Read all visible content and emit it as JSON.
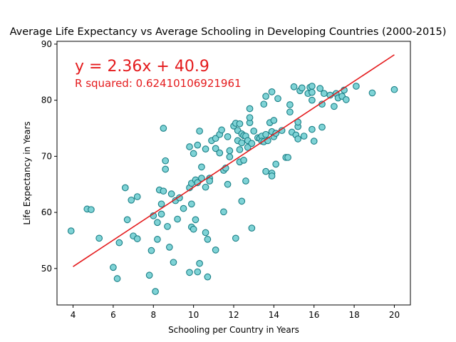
{
  "chart_data": {
    "type": "scatter",
    "title": "Average Life Expectancy vs Average Schooling in Developing Countries (2000-2015)",
    "xlabel": "Schooling per Country in Years",
    "ylabel": "Life Expectancy in Years",
    "xlim": [
      3.2,
      20.8
    ],
    "ylim": [
      43.5,
      90.5
    ],
    "xticks": [
      4,
      6,
      8,
      10,
      12,
      14,
      16,
      18,
      20
    ],
    "yticks": [
      50,
      60,
      70,
      80,
      90
    ],
    "grid": false,
    "colors": {
      "marker_face": "#7fd3d6",
      "marker_edge": "#1a7f86",
      "regression": "#e41a1c"
    },
    "regression": {
      "slope": 2.36,
      "intercept": 40.9,
      "x_range": [
        4.0,
        20.0
      ],
      "equation_text": "y = 2.36x + 40.9",
      "r_squared_text": "R squared: 0.62410106921961"
    },
    "points": [
      [
        3.9,
        56.7
      ],
      [
        4.7,
        60.6
      ],
      [
        4.9,
        60.5
      ],
      [
        5.3,
        55.4
      ],
      [
        6.0,
        50.2
      ],
      [
        6.2,
        48.2
      ],
      [
        6.3,
        54.6
      ],
      [
        6.6,
        64.4
      ],
      [
        6.7,
        58.7
      ],
      [
        6.9,
        62.2
      ],
      [
        7.0,
        55.8
      ],
      [
        7.2,
        62.8
      ],
      [
        7.2,
        55.3
      ],
      [
        7.8,
        48.8
      ],
      [
        7.9,
        53.2
      ],
      [
        8.0,
        59.4
      ],
      [
        8.1,
        45.9
      ],
      [
        8.2,
        58.2
      ],
      [
        8.2,
        55.2
      ],
      [
        8.3,
        64.0
      ],
      [
        8.4,
        59.7
      ],
      [
        8.4,
        61.5
      ],
      [
        8.5,
        63.8
      ],
      [
        8.5,
        75.0
      ],
      [
        8.6,
        69.2
      ],
      [
        8.6,
        67.7
      ],
      [
        8.7,
        57.5
      ],
      [
        8.8,
        53.8
      ],
      [
        8.9,
        63.3
      ],
      [
        9.0,
        51.1
      ],
      [
        9.1,
        62.1
      ],
      [
        9.2,
        58.8
      ],
      [
        9.3,
        62.6
      ],
      [
        9.5,
        60.7
      ],
      [
        9.8,
        64.4
      ],
      [
        9.8,
        71.7
      ],
      [
        9.8,
        49.3
      ],
      [
        9.9,
        61.5
      ],
      [
        9.9,
        57.4
      ],
      [
        9.9,
        65.2
      ],
      [
        10.0,
        70.5
      ],
      [
        10.0,
        57.0
      ],
      [
        10.1,
        58.7
      ],
      [
        10.1,
        65.8
      ],
      [
        10.2,
        72.0
      ],
      [
        10.2,
        49.4
      ],
      [
        10.2,
        65.3
      ],
      [
        10.3,
        74.5
      ],
      [
        10.3,
        50.9
      ],
      [
        10.4,
        68.1
      ],
      [
        10.4,
        66.1
      ],
      [
        10.6,
        64.5
      ],
      [
        10.6,
        71.3
      ],
      [
        10.6,
        56.4
      ],
      [
        10.7,
        48.5
      ],
      [
        10.7,
        55.2
      ],
      [
        10.8,
        66.1
      ],
      [
        10.8,
        65.6
      ],
      [
        10.9,
        72.8
      ],
      [
        11.1,
        73.2
      ],
      [
        11.1,
        71.4
      ],
      [
        11.1,
        53.3
      ],
      [
        11.3,
        70.6
      ],
      [
        11.3,
        73.9
      ],
      [
        11.4,
        74.7
      ],
      [
        11.5,
        67.5
      ],
      [
        11.5,
        60.1
      ],
      [
        11.6,
        67.9
      ],
      [
        11.7,
        65.0
      ],
      [
        11.7,
        73.5
      ],
      [
        11.8,
        71.0
      ],
      [
        11.8,
        69.9
      ],
      [
        12.0,
        75.4
      ],
      [
        12.1,
        75.9
      ],
      [
        12.1,
        55.4
      ],
      [
        12.2,
        72.8
      ],
      [
        12.2,
        74.6
      ],
      [
        12.3,
        75.8
      ],
      [
        12.3,
        71.2
      ],
      [
        12.3,
        69.0
      ],
      [
        12.4,
        72.4
      ],
      [
        12.4,
        74.0
      ],
      [
        12.4,
        62.0
      ],
      [
        12.5,
        73.7
      ],
      [
        12.5,
        69.3
      ],
      [
        12.6,
        65.6
      ],
      [
        12.6,
        73.6
      ],
      [
        12.7,
        71.6
      ],
      [
        12.7,
        72.8
      ],
      [
        12.8,
        76.0
      ],
      [
        12.8,
        76.9
      ],
      [
        12.8,
        78.5
      ],
      [
        12.9,
        72.3
      ],
      [
        12.9,
        57.2
      ],
      [
        13.0,
        74.5
      ],
      [
        13.2,
        73.3
      ],
      [
        13.3,
        73.2
      ],
      [
        13.4,
        73.6
      ],
      [
        13.4,
        72.7
      ],
      [
        13.5,
        79.3
      ],
      [
        13.5,
        72.6
      ],
      [
        13.6,
        80.7
      ],
      [
        13.6,
        67.3
      ],
      [
        13.6,
        73.9
      ],
      [
        13.7,
        72.8
      ],
      [
        13.8,
        76.0
      ],
      [
        13.9,
        67.0
      ],
      [
        13.9,
        66.5
      ],
      [
        13.9,
        74.4
      ],
      [
        13.9,
        81.5
      ],
      [
        14.0,
        76.4
      ],
      [
        14.0,
        73.5
      ],
      [
        14.1,
        68.6
      ],
      [
        14.1,
        74.1
      ],
      [
        14.2,
        80.3
      ],
      [
        14.4,
        74.6
      ],
      [
        14.6,
        69.8
      ],
      [
        14.7,
        69.8
      ],
      [
        14.8,
        79.2
      ],
      [
        14.8,
        77.9
      ],
      [
        14.9,
        74.3
      ],
      [
        15.0,
        82.4
      ],
      [
        15.1,
        73.8
      ],
      [
        15.2,
        73.1
      ],
      [
        15.2,
        75.3
      ],
      [
        15.2,
        76.1
      ],
      [
        15.3,
        81.7
      ],
      [
        15.4,
        82.2
      ],
      [
        15.5,
        73.6
      ],
      [
        15.7,
        81.2
      ],
      [
        15.8,
        82.3
      ],
      [
        15.9,
        81.4
      ],
      [
        15.9,
        80.0
      ],
      [
        15.9,
        82.5
      ],
      [
        15.9,
        74.8
      ],
      [
        16.0,
        72.7
      ],
      [
        16.3,
        82.1
      ],
      [
        16.4,
        75.2
      ],
      [
        16.4,
        79.3
      ],
      [
        16.5,
        81.2
      ],
      [
        16.8,
        80.9
      ],
      [
        17.0,
        78.9
      ],
      [
        17.1,
        81.2
      ],
      [
        17.2,
        80.4
      ],
      [
        17.4,
        80.7
      ],
      [
        17.5,
        81.8
      ],
      [
        17.6,
        80.1
      ],
      [
        18.1,
        82.5
      ],
      [
        18.9,
        81.3
      ],
      [
        20.0,
        81.9
      ]
    ]
  }
}
